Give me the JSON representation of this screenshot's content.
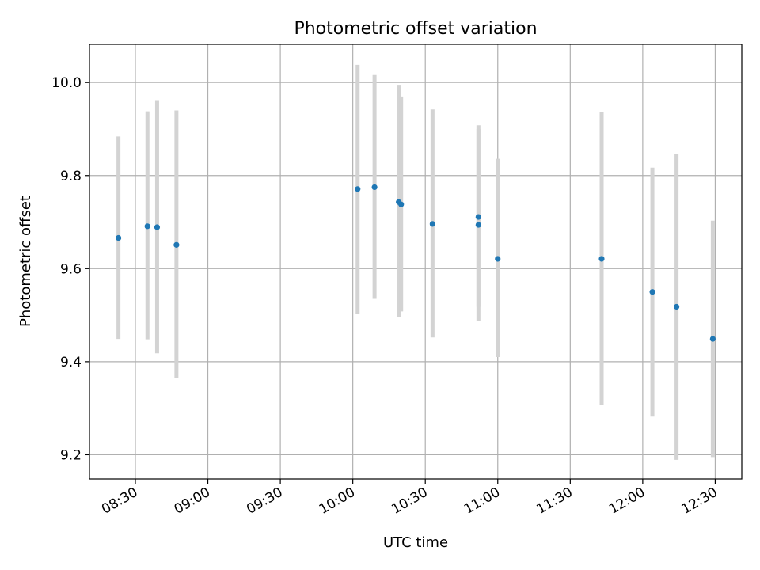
{
  "chart_data": {
    "type": "scatter",
    "title": "Photometric offset variation",
    "xlabel": "UTC time",
    "ylabel": "Photometric offset",
    "x_unit": "minutes",
    "xlim": [
      "08:11",
      "12:41"
    ],
    "ylim": [
      9.148,
      10.082
    ],
    "grid": true,
    "x_ticks": [
      "08:30",
      "09:00",
      "09:30",
      "10:00",
      "10:30",
      "11:00",
      "11:30",
      "12:00",
      "12:30"
    ],
    "y_ticks": [
      "9.2",
      "9.4",
      "9.6",
      "9.8",
      "10.0"
    ],
    "colors": {
      "point": "#1f77b4",
      "errorbar": "#d3d3d3"
    },
    "points": [
      {
        "x": "08:23",
        "y": 9.666,
        "ylow": 9.449,
        "yhigh": 9.884
      },
      {
        "x": "08:35",
        "y": 9.691,
        "ylow": 9.448,
        "yhigh": 9.938
      },
      {
        "x": "08:39",
        "y": 9.689,
        "ylow": 9.418,
        "yhigh": 9.962
      },
      {
        "x": "08:47",
        "y": 9.651,
        "ylow": 9.365,
        "yhigh": 9.94
      },
      {
        "x": "10:02",
        "y": 9.771,
        "ylow": 9.502,
        "yhigh": 10.038
      },
      {
        "x": "10:09",
        "y": 9.775,
        "ylow": 9.535,
        "yhigh": 10.016
      },
      {
        "x": "10:19",
        "y": 9.743,
        "ylow": 9.495,
        "yhigh": 9.995
      },
      {
        "x": "10:20",
        "y": 9.738,
        "ylow": 9.508,
        "yhigh": 9.97
      },
      {
        "x": "10:33",
        "y": 9.696,
        "ylow": 9.452,
        "yhigh": 9.942
      },
      {
        "x": "10:52",
        "y": 9.711,
        "ylow": 9.518,
        "yhigh": 9.908
      },
      {
        "x": "10:52",
        "y": 9.694,
        "ylow": 9.488,
        "yhigh": 9.9
      },
      {
        "x": "11:00",
        "y": 9.621,
        "ylow": 9.41,
        "yhigh": 9.836
      },
      {
        "x": "11:43",
        "y": 9.621,
        "ylow": 9.307,
        "yhigh": 9.937
      },
      {
        "x": "12:04",
        "y": 9.55,
        "ylow": 9.282,
        "yhigh": 9.817
      },
      {
        "x": "12:14",
        "y": 9.518,
        "ylow": 9.189,
        "yhigh": 9.846
      },
      {
        "x": "12:29",
        "y": 9.449,
        "ylow": 9.195,
        "yhigh": 9.703
      }
    ]
  }
}
